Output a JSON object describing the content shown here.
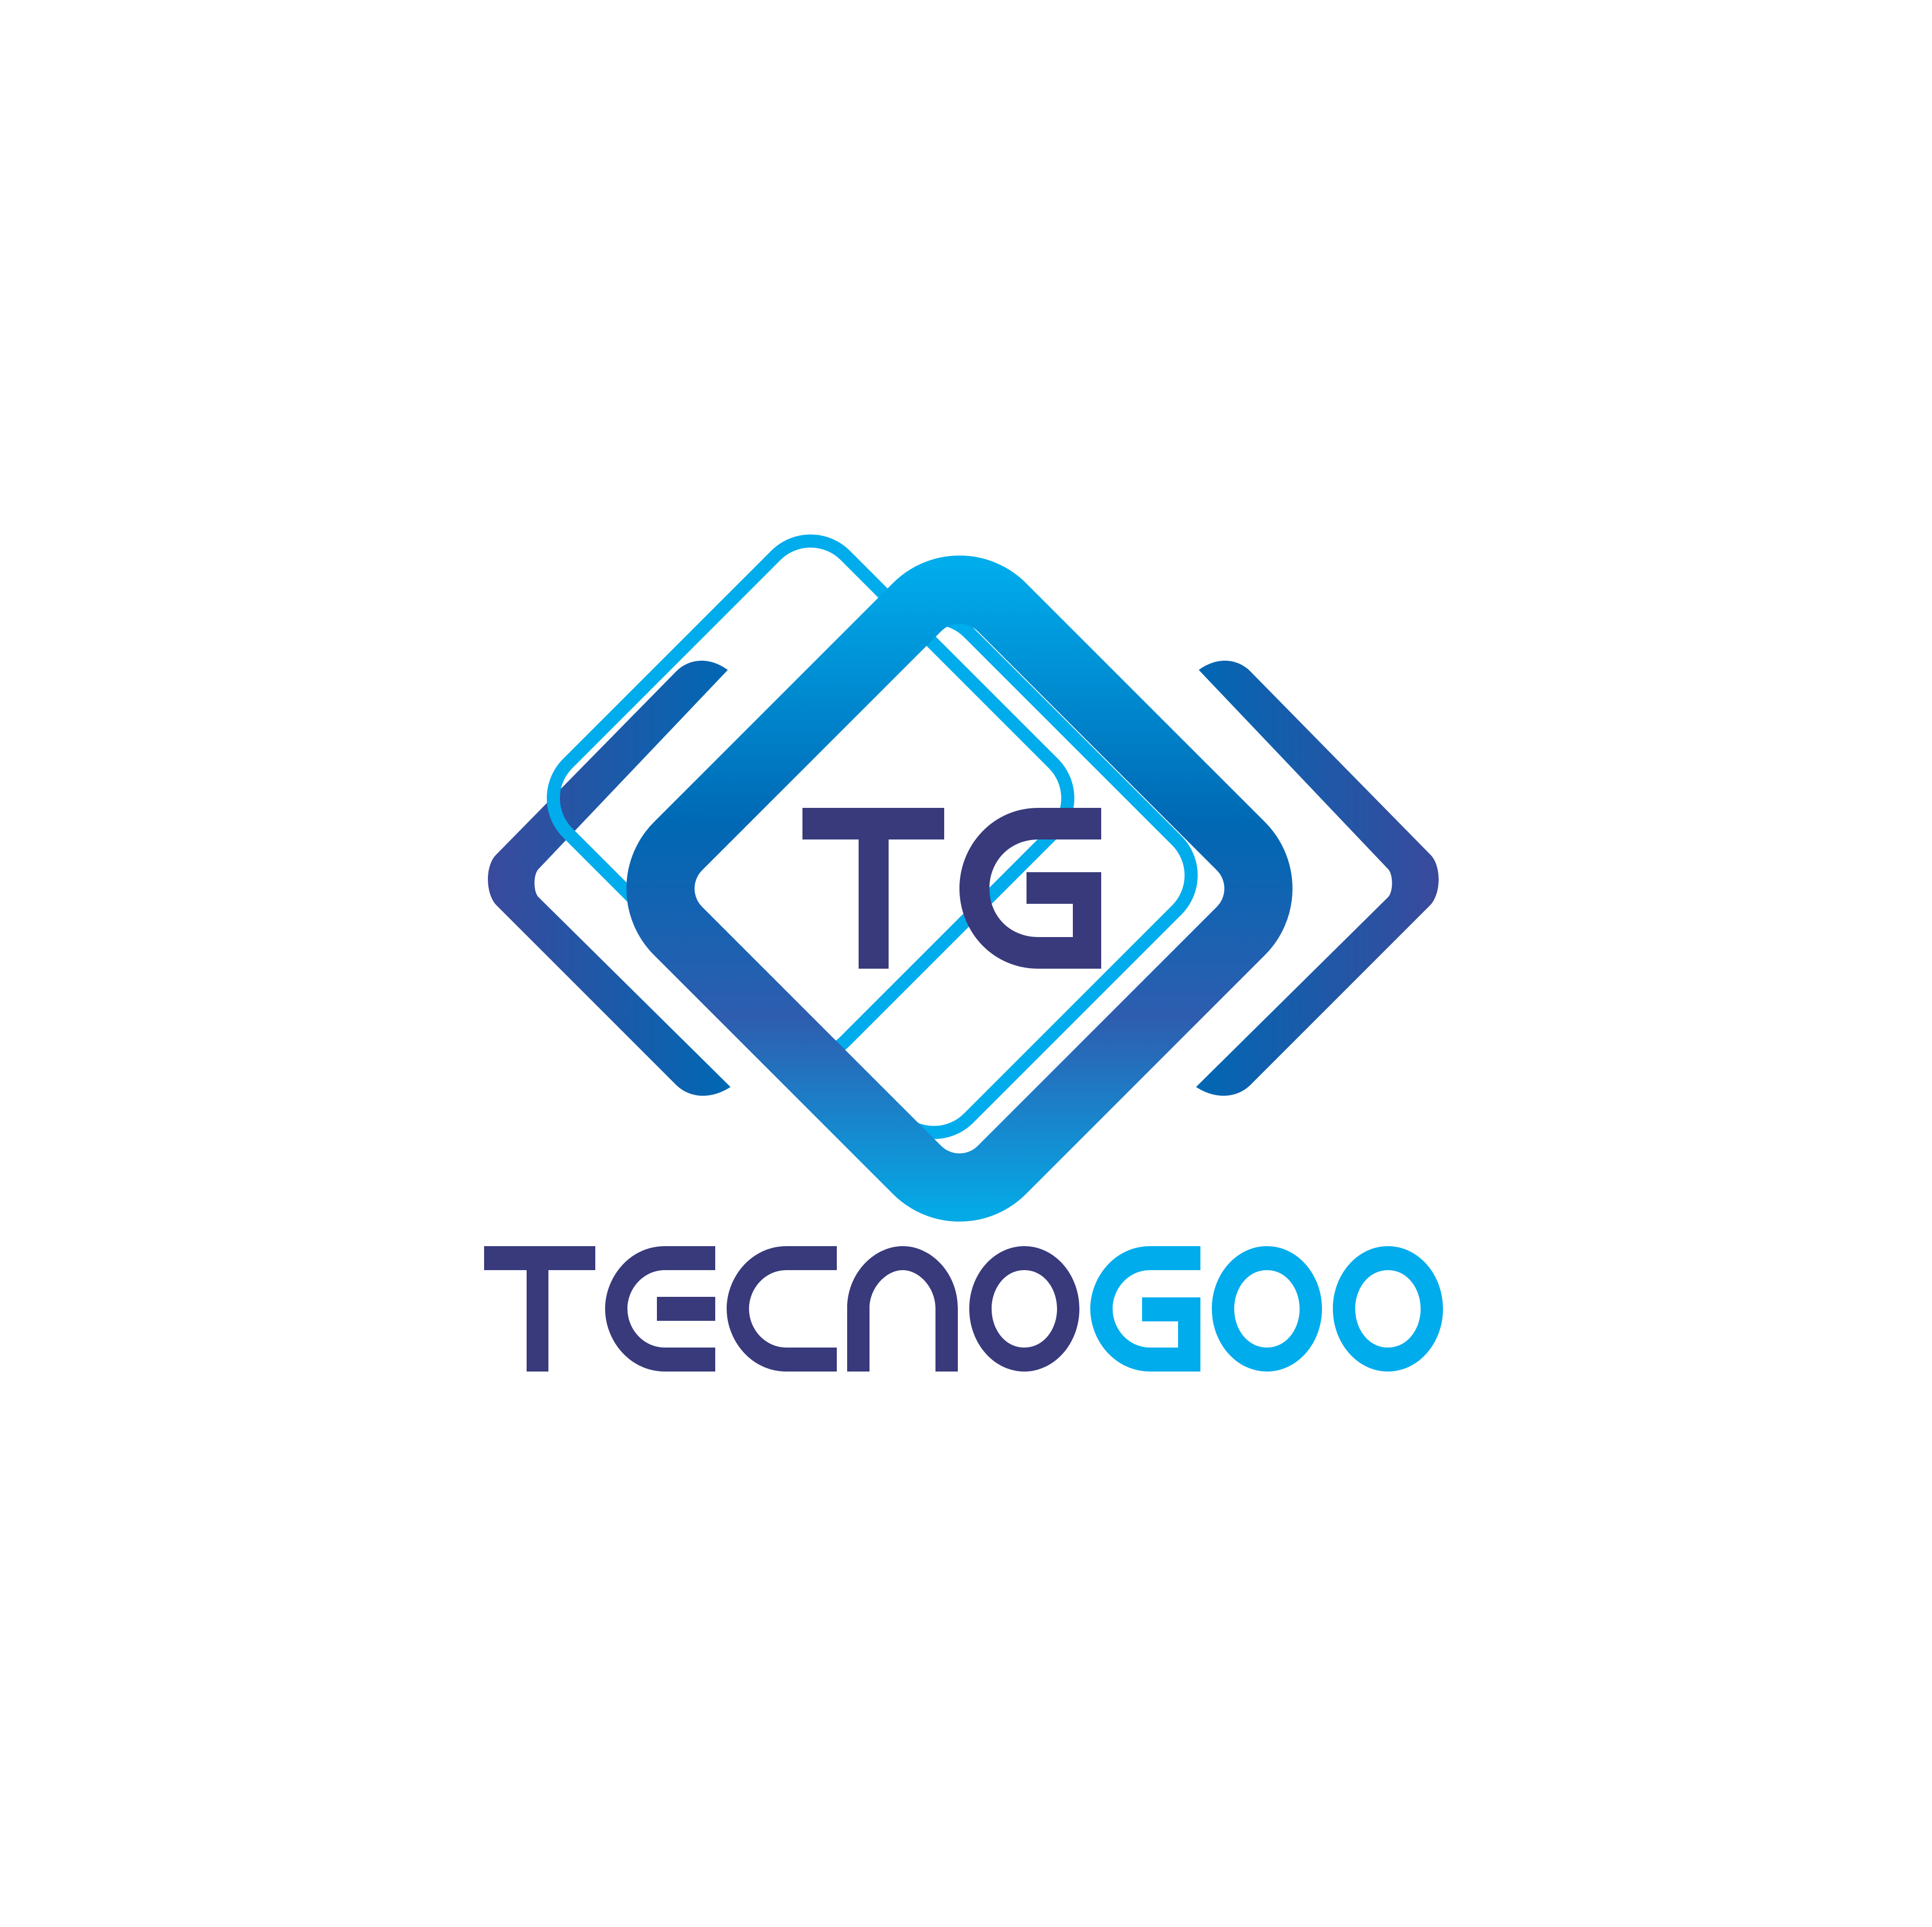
{
  "logo": {
    "monogram": "TG",
    "wordmark": "TECNOGOO",
    "colors": {
      "navy": "#383A7C",
      "indigo": "#3A4A9C",
      "royal_blue": "#0068B4",
      "cyan": "#00ACEC",
      "background": "#FFFFFF"
    }
  }
}
